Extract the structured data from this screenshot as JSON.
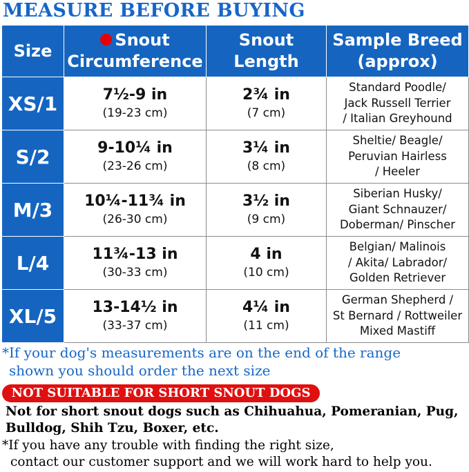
{
  "title": "MEASURE BEFORE BUYING",
  "table": {
    "headers": {
      "size": "Size",
      "snout_circumference_line1": "Snout",
      "snout_circumference_line2": "Circumference",
      "snout_length_line1": "Snout",
      "snout_length_line2": "Length",
      "sample_breed_line1": "Sample Breed",
      "sample_breed_line2": "(approx)"
    },
    "rows": [
      {
        "size": "XS/1",
        "circ_in": "7½-9 in",
        "circ_cm": "(19-23 cm)",
        "len_in": "2¾ in",
        "len_cm": "(7 cm)",
        "breed": [
          "Standard Poodle/",
          "Jack Russell Terrier",
          "/ Italian Greyhound"
        ]
      },
      {
        "size": "S/2",
        "circ_in": "9-10¼ in",
        "circ_cm": "(23-26 cm)",
        "len_in": "3¼ in",
        "len_cm": "(8 cm)",
        "breed": [
          "Sheltie/ Beagle/",
          "Peruvian Hairless",
          "/ Heeler"
        ]
      },
      {
        "size": "M/3",
        "circ_in": "10¼-11¾ in",
        "circ_cm": "(26-30 cm)",
        "len_in": "3½ in",
        "len_cm": "(9 cm)",
        "breed": [
          "Siberian Husky/",
          "Giant Schnauzer/",
          "Doberman/ Pinscher"
        ]
      },
      {
        "size": "L/4",
        "circ_in": "11¾-13 in",
        "circ_cm": "(30-33 cm)",
        "len_in": "4 in",
        "len_cm": "(10 cm)",
        "breed": [
          "Belgian/ Malinois",
          "/ Akita/ Labrador/",
          "Golden Retriever"
        ]
      },
      {
        "size": "XL/5",
        "circ_in": "13-14½ in",
        "circ_cm": "(33-37 cm)",
        "len_in": "4¼ in",
        "len_cm": "(11 cm)",
        "breed": [
          "German Shepherd /",
          "St Bernard / Rottweiler",
          "Mixed Mastiff"
        ]
      }
    ]
  },
  "notes": {
    "range_line1": "*If your dog's measurements are on the end of the range",
    "range_line2": "shown you should order the next size",
    "warning": "NOT SUITABLE FOR SHORT SNOUT DOGS",
    "short_snout_line1": "Not for short snout dogs such as Chihuahua, Pomeranian, Pug,",
    "short_snout_line2": "Bulldog, Shih Tzu, Boxer, etc.",
    "support_line1": "*If you have any trouble with finding the right size,",
    "support_line2": "contact our customer support and we will work hard to help you."
  },
  "colors": {
    "header_blue": "#1565c0",
    "title_blue": "#1766c8",
    "warning_red": "#e11010",
    "dot_red": "#e5000a"
  }
}
